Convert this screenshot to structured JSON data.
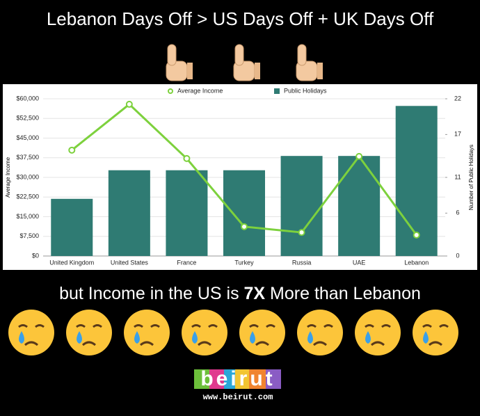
{
  "header": {
    "title": "Lebanon Days Off > US Days Off + UK Days Off"
  },
  "chart_data": {
    "type": "combo",
    "categories": [
      "United Kingdom",
      "United States",
      "France",
      "Turkey",
      "Russia",
      "UAE",
      "Lebanon"
    ],
    "series": [
      {
        "name": "Average Income",
        "type": "line",
        "color": "#7dd13d",
        "values": [
          40400,
          57900,
          37200,
          11200,
          9000,
          38000,
          8000
        ]
      },
      {
        "name": "Public Holidays",
        "type": "bar",
        "color": "#2f7b73",
        "axis": "y2",
        "values": [
          8,
          12,
          12,
          12,
          14,
          14,
          21
        ]
      }
    ],
    "y_label": "Average Income",
    "y2_label": "Number of Public Holidays",
    "ylim": [
      0,
      60000
    ],
    "yticks": [
      {
        "value": 0,
        "label": "$0"
      },
      {
        "value": 7500,
        "label": "$7,500"
      },
      {
        "value": 15000,
        "label": "$15,000"
      },
      {
        "value": 22500,
        "label": "$22,500"
      },
      {
        "value": 30000,
        "label": "$30,000"
      },
      {
        "value": 37500,
        "label": "$37,500"
      },
      {
        "value": 45000,
        "label": "$45,000"
      },
      {
        "value": 52500,
        "label": "$52,500"
      },
      {
        "value": 60000,
        "label": "$60,000"
      }
    ],
    "y2lim": [
      0,
      22
    ],
    "y2ticks": [
      0,
      6,
      11,
      17,
      22
    ],
    "grid": true,
    "legend": "top"
  },
  "caption": {
    "before": "but Income in the US is ",
    "emphasis": "7X",
    "after": " More than Lebanon"
  },
  "footer": {
    "logo": "beirut",
    "url": "www.beirut.com"
  }
}
